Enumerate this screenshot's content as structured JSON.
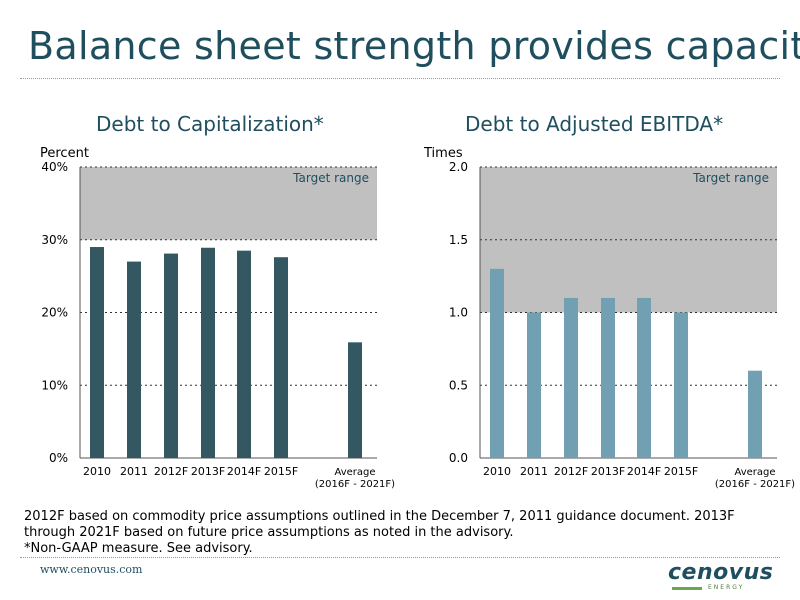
{
  "slide": {
    "title": "Balance sheet strength provides capacity",
    "footnote_line1": "2012F based on commodity price assumptions outlined in the December 7, 2011 guidance document. 2013F through 2021F based on future price assumptions as noted in the advisory.",
    "footnote_line2": "*Non-GAAP measure. See advisory.",
    "website": "www.cenovus.com",
    "logo_text": "cenovus",
    "logo_sub": "ENERGY"
  },
  "chart_data": [
    {
      "type": "bar",
      "title": "Debt to Capitalization*",
      "ylabel": "Percent",
      "categories": [
        "2010",
        "2011",
        "2012F",
        "2013F",
        "2014F",
        "2015F",
        "Average\n(2016F - 2021F)"
      ],
      "values": [
        29,
        27,
        28.1,
        28.9,
        28.5,
        27.6,
        15.9
      ],
      "ylim": [
        0,
        40
      ],
      "yticks": [
        0,
        10,
        20,
        30,
        40
      ],
      "ytick_labels": [
        "0%",
        "10%",
        "20%",
        "30%",
        "40%"
      ],
      "target_range": [
        30,
        40
      ],
      "target_label": "Target range",
      "bar_color": "#335861",
      "grid": true
    },
    {
      "type": "bar",
      "title": "Debt to Adjusted EBITDA*",
      "ylabel": "Times",
      "categories": [
        "2010",
        "2011",
        "2012F",
        "2013F",
        "2014F",
        "2015F",
        "Average\n(2016F - 2021F)"
      ],
      "values": [
        1.3,
        1.0,
        1.1,
        1.1,
        1.1,
        1.0,
        0.6
      ],
      "ylim": [
        0,
        2.0
      ],
      "yticks": [
        0,
        0.5,
        1.0,
        1.5,
        2.0
      ],
      "ytick_labels": [
        "0.0",
        "0.5",
        "1.0",
        "1.5",
        "2.0"
      ],
      "target_range": [
        1.0,
        2.0
      ],
      "target_label": "Target range",
      "bar_color": "#71a0b2",
      "grid": true
    }
  ],
  "colors": {
    "title": "#1f4e5f",
    "target_band": "#c0c0c0"
  }
}
